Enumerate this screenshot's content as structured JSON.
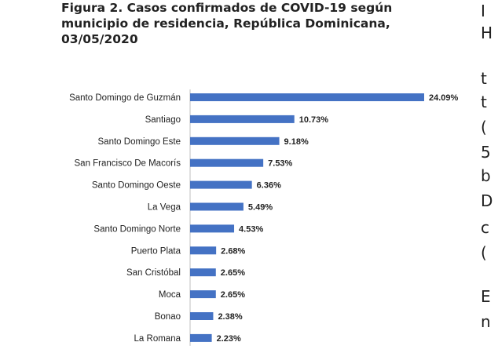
{
  "figure": {
    "title_lines": [
      "Figura 2. Casos confirmados de COVID-19 según",
      "municipio de residencia, República Dominicana,",
      "03/05/2020"
    ]
  },
  "chart_data": {
    "type": "bar",
    "orientation": "horizontal",
    "title": "Figura 2. Casos confirmados de COVID-19 según municipio de residencia, República Dominicana, 03/05/2020",
    "categories": [
      "Santo Domingo de Guzmán",
      "Santiago",
      "Santo Domingo Este",
      "San Francisco De Macorís",
      "Santo Domingo Oeste",
      "La Vega",
      "Santo Domingo Norte",
      "Puerto Plata",
      "San Cristóbal",
      "Moca",
      "Bonao",
      "La Romana"
    ],
    "values": [
      24.09,
      10.73,
      9.18,
      7.53,
      6.36,
      5.49,
      4.53,
      2.68,
      2.65,
      2.65,
      2.38,
      2.23
    ],
    "value_labels": [
      "24.09%",
      "10.73%",
      "9.18%",
      "7.53%",
      "6.36%",
      "5.49%",
      "4.53%",
      "2.68%",
      "2.65%",
      "2.65%",
      "2.38%",
      "2.23%"
    ],
    "xlim": [
      0,
      24.09
    ],
    "grid": false,
    "legend": "none",
    "bar_color": "#4472c4"
  },
  "adjacent_text": {
    "right_edge_glyphs": [
      "I",
      "H",
      "t",
      "t",
      "(",
      "5",
      "b",
      "D",
      "c",
      "(",
      "E",
      "n"
    ]
  }
}
